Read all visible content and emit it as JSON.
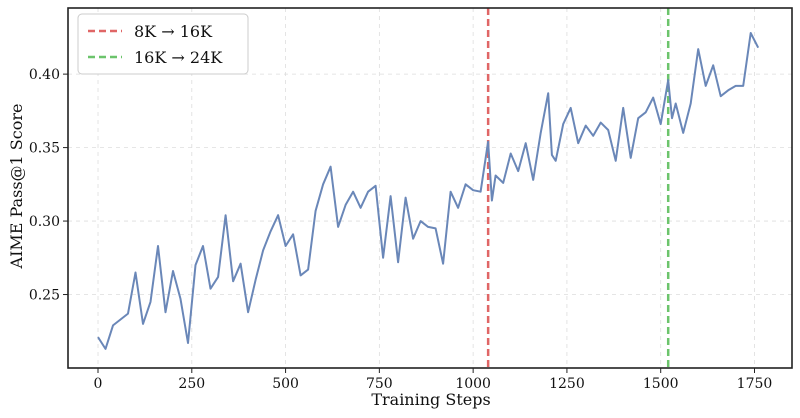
{
  "chart_data": {
    "type": "line",
    "xlabel": "Training Steps",
    "ylabel": "AIME Pass@1 Score",
    "xlim": [
      -80,
      1850
    ],
    "ylim": [
      0.2,
      0.445
    ],
    "x_ticks": [
      0,
      250,
      500,
      750,
      1000,
      1250,
      1500,
      1750
    ],
    "y_ticks": [
      0.25,
      0.3,
      0.35,
      0.4
    ],
    "y_tick_labels": [
      "0.25",
      "0.30",
      "0.35",
      "0.40"
    ],
    "grid": true,
    "legend_position": "top-left",
    "series": [
      {
        "color": "#6a87b8",
        "x": [
          0,
          20,
          40,
          60,
          80,
          100,
          120,
          140,
          160,
          180,
          200,
          220,
          240,
          260,
          280,
          300,
          320,
          340,
          360,
          380,
          400,
          420,
          440,
          460,
          480,
          500,
          520,
          540,
          560,
          580,
          600,
          620,
          640,
          660,
          680,
          700,
          720,
          740,
          760,
          780,
          800,
          820,
          840,
          860,
          880,
          900,
          920,
          940,
          960,
          980,
          1000,
          1020,
          1040,
          1050,
          1060,
          1080,
          1100,
          1120,
          1140,
          1160,
          1180,
          1200,
          1210,
          1220,
          1240,
          1260,
          1280,
          1300,
          1320,
          1340,
          1360,
          1380,
          1400,
          1420,
          1440,
          1460,
          1480,
          1500,
          1520,
          1530,
          1540,
          1560,
          1580,
          1600,
          1620,
          1640,
          1660,
          1680,
          1700,
          1720,
          1740,
          1760
        ],
        "y": [
          0.221,
          0.213,
          0.229,
          0.233,
          0.237,
          0.265,
          0.23,
          0.245,
          0.283,
          0.238,
          0.266,
          0.247,
          0.217,
          0.27,
          0.283,
          0.254,
          0.262,
          0.304,
          0.259,
          0.271,
          0.238,
          0.26,
          0.28,
          0.293,
          0.304,
          0.283,
          0.291,
          0.263,
          0.267,
          0.307,
          0.325,
          0.337,
          0.296,
          0.311,
          0.32,
          0.309,
          0.32,
          0.324,
          0.275,
          0.317,
          0.272,
          0.316,
          0.288,
          0.3,
          0.296,
          0.295,
          0.271,
          0.32,
          0.309,
          0.325,
          0.321,
          0.32,
          0.354,
          0.314,
          0.331,
          0.326,
          0.346,
          0.334,
          0.353,
          0.328,
          0.36,
          0.387,
          0.345,
          0.341,
          0.366,
          0.377,
          0.353,
          0.365,
          0.358,
          0.367,
          0.362,
          0.341,
          0.377,
          0.343,
          0.37,
          0.374,
          0.384,
          0.366,
          0.396,
          0.37,
          0.38,
          0.36,
          0.38,
          0.417,
          0.392,
          0.406,
          0.385,
          0.389,
          0.392,
          0.392,
          0.428,
          0.418
        ]
      }
    ],
    "vlines": [
      {
        "x": 1040,
        "color": "#e06666",
        "label": "8K → 16K"
      },
      {
        "x": 1520,
        "color": "#6cc46c",
        "label": "16K → 24K"
      }
    ]
  }
}
